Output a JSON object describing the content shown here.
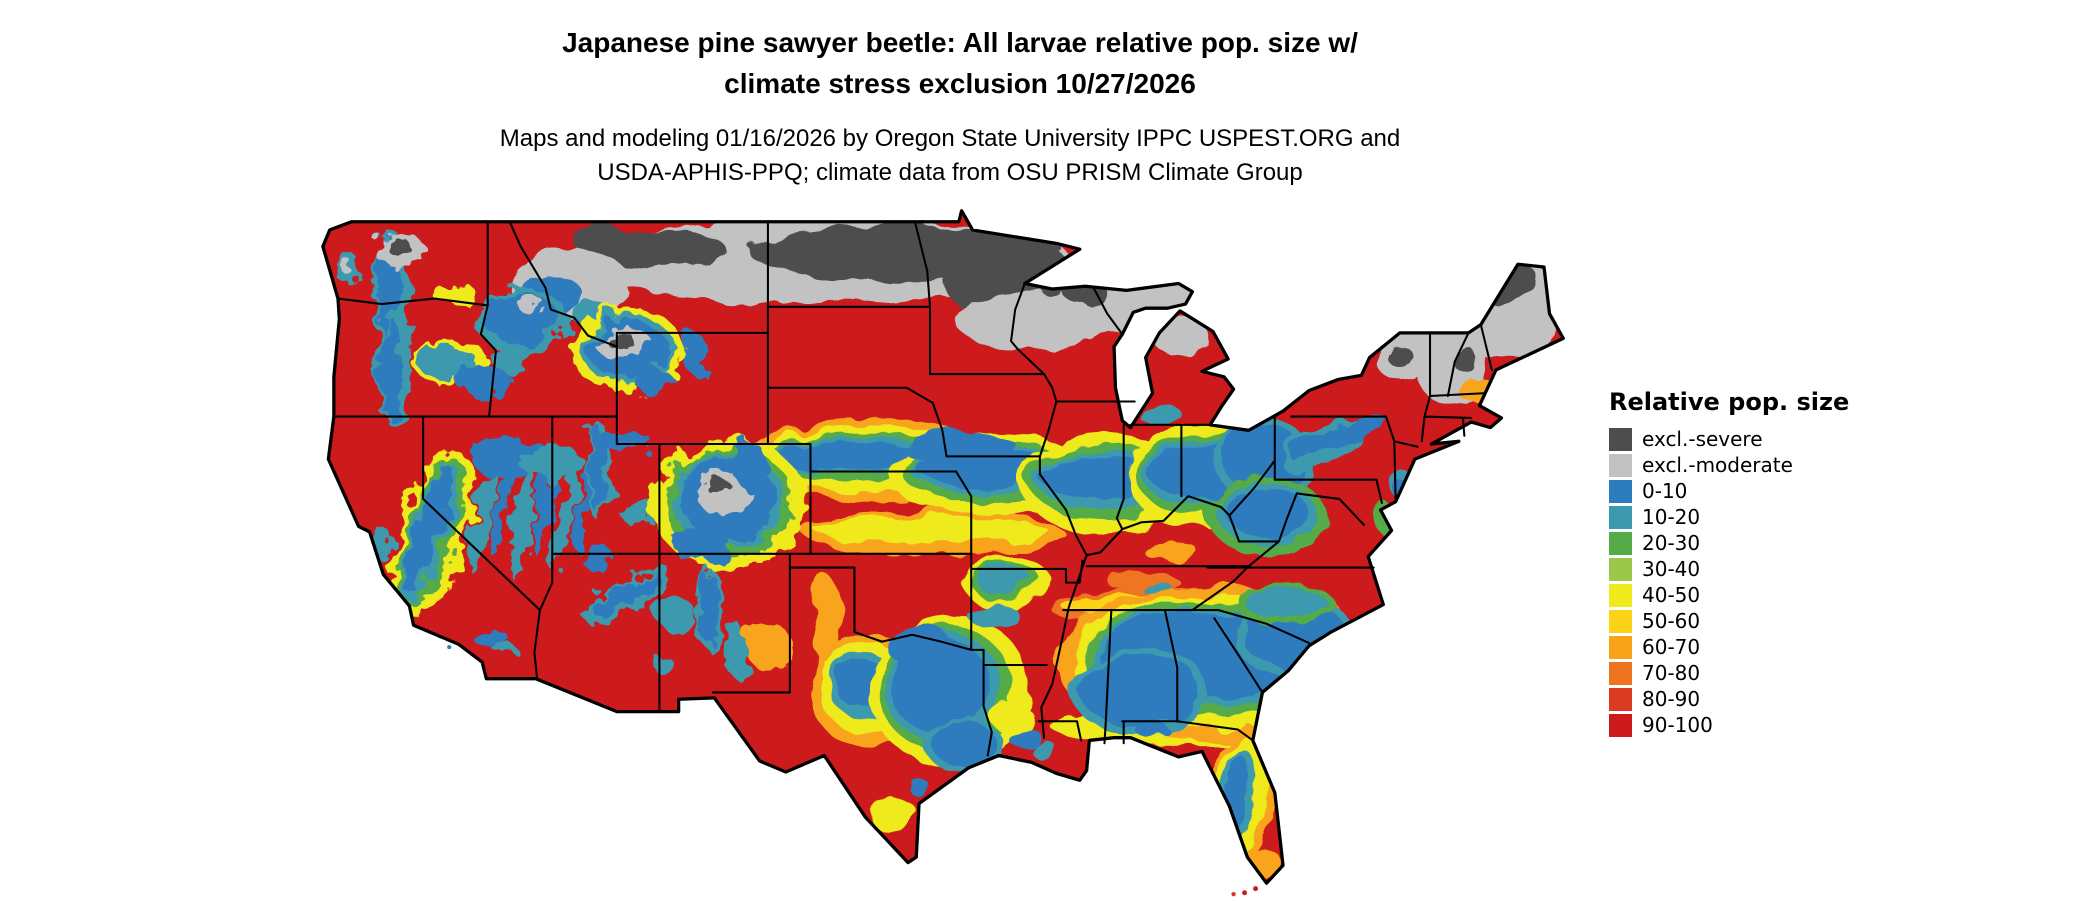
{
  "title": {
    "line1": "Japanese pine sawyer beetle: All larvae relative pop. size w/",
    "line2": "climate stress exclusion 10/27/2026"
  },
  "subtitle": {
    "line1": "Maps and modeling 01/16/2026 by Oregon State University IPPC USPEST.ORG and",
    "line2": "USDA-APHIS-PPQ; climate data from OSU PRISM Climate Group"
  },
  "map": {
    "area": "contiguous United States",
    "type": "raster choropleth with state borders"
  },
  "legend": {
    "title": "Relative pop. size",
    "items": [
      {
        "label": "excl.-severe",
        "color": "#4d4d4d"
      },
      {
        "label": "excl.-moderate",
        "color": "#c2c2c2"
      },
      {
        "label": "0-10",
        "color": "#2d7cbe"
      },
      {
        "label": "10-20",
        "color": "#3d9aae"
      },
      {
        "label": "20-30",
        "color": "#55ab47"
      },
      {
        "label": "30-40",
        "color": "#9cc84a"
      },
      {
        "label": "40-50",
        "color": "#eeea1c"
      },
      {
        "label": "50-60",
        "color": "#fdd317"
      },
      {
        "label": "60-70",
        "color": "#f8a41b"
      },
      {
        "label": "70-80",
        "color": "#ee7420"
      },
      {
        "label": "80-90",
        "color": "#da3b21"
      },
      {
        "label": "90-100",
        "color": "#cd1a1d"
      }
    ]
  }
}
